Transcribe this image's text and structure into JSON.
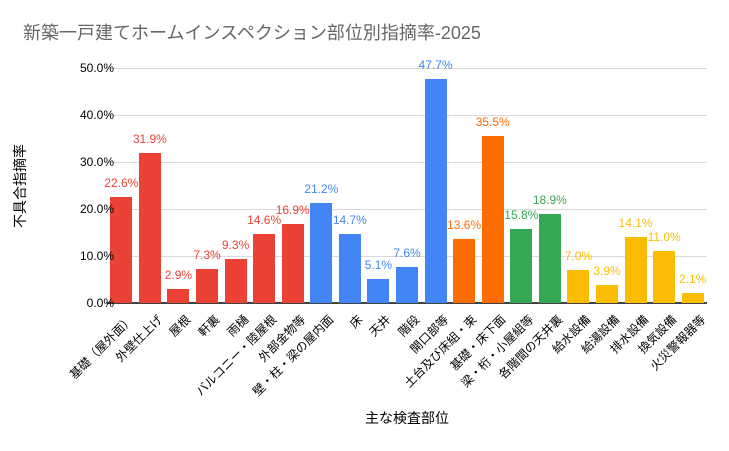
{
  "title": "新築一戸建てホームインスペクション部位別指摘率-2025",
  "colors": {
    "red": "#EA4335",
    "blue": "#4285F4",
    "orange": "#FF6D01",
    "green": "#34A853",
    "yellow": "#FBBC04",
    "gridline": "#D9D9D9",
    "axis_line": "#424242",
    "title_text": "#666666"
  },
  "chart_data": {
    "type": "bar",
    "title": "新築一戸建てホームインスペクション部位別指摘率-2025",
    "xlabel": "主な検査部位",
    "ylabel": "不具合指摘率",
    "ylim": [
      0,
      50
    ],
    "ytick_labels": [
      "0.0%",
      "10.0%",
      "20.0%",
      "30.0%",
      "40.0%",
      "50.0%"
    ],
    "grid": true,
    "legend": "none",
    "value_label_format": "0.0%",
    "categories": [
      "基礎（屋外面）",
      "外壁仕上げ",
      "屋根",
      "軒裏",
      "雨樋",
      "バルコニー・陸屋根",
      "外部金物等",
      "壁・柱・梁の屋内面",
      "床",
      "天井",
      "階段",
      "開口部等",
      "土台及び床組・束",
      "基礎・床下面",
      "梁・桁・小屋組等",
      "各階間の天井裏",
      "給水設備",
      "給湯設備",
      "排水設備",
      "換気設備",
      "火災警報器等"
    ],
    "values": [
      22.6,
      31.9,
      2.9,
      7.3,
      9.3,
      14.6,
      16.9,
      21.2,
      14.7,
      5.1,
      7.6,
      47.7,
      13.6,
      35.5,
      15.8,
      18.9,
      7.0,
      3.9,
      14.1,
      11.0,
      2.1
    ],
    "bar_colors": [
      "#EA4335",
      "#EA4335",
      "#EA4335",
      "#EA4335",
      "#EA4335",
      "#EA4335",
      "#EA4335",
      "#4285F4",
      "#4285F4",
      "#4285F4",
      "#4285F4",
      "#4285F4",
      "#FF6D01",
      "#FF6D01",
      "#34A853",
      "#34A853",
      "#FBBC04",
      "#FBBC04",
      "#FBBC04",
      "#FBBC04",
      "#FBBC04"
    ]
  }
}
